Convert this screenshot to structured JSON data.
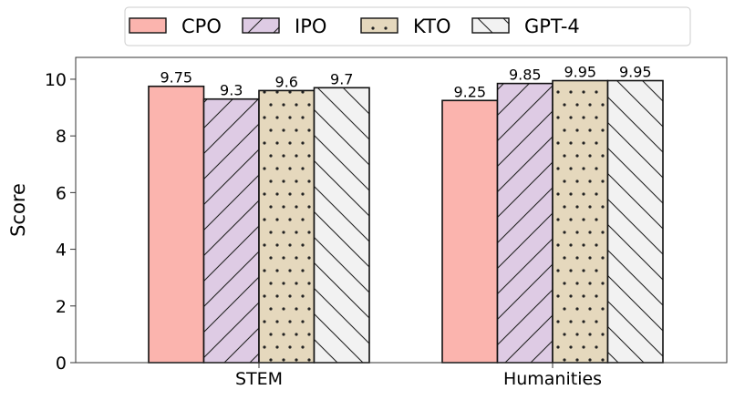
{
  "chart_data": {
    "type": "bar",
    "title": "",
    "xlabel": "",
    "ylabel": "Score",
    "ylim": [
      0,
      10.77
    ],
    "yticks": [
      0,
      2,
      4,
      6,
      8,
      10
    ],
    "categories": [
      "STEM",
      "Humanities"
    ],
    "grid": false,
    "legend_position": "top-center",
    "series": [
      {
        "name": "CPO",
        "values": [
          9.75,
          9.25
        ],
        "color": "#fbb4ae",
        "pattern": "none"
      },
      {
        "name": "IPO",
        "values": [
          9.3,
          9.85
        ],
        "color": "#decbe4",
        "pattern": "forward-hatch"
      },
      {
        "name": "KTO",
        "values": [
          9.6,
          9.95
        ],
        "color": "#e5d8bd",
        "pattern": "dots"
      },
      {
        "name": "GPT-4",
        "values": [
          9.7,
          9.95
        ],
        "color": "#f2f2f2",
        "pattern": "back-hatch"
      }
    ]
  }
}
